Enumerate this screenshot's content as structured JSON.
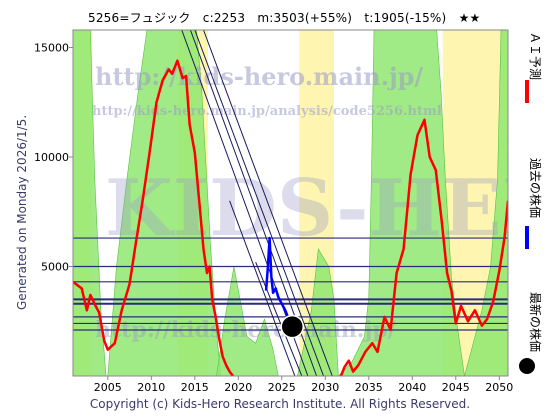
{
  "header": {
    "title": "5256=フュジック　c:2253　m:3503(+55%)　t:1905(-15%)　★★"
  },
  "side_note": "Generated on Monday 2026/1/5.",
  "footer": "Copyright (c) Kids-Hero Research Institute. All Rights Reserved.",
  "watermark": {
    "line1": "http://kids-hero.main.jp/",
    "line2": "http://kids-hero.main.jp/analysis/code5256.html",
    "big": "KIDS-HERO",
    "line3": "http://kids-hero.main.jp/"
  },
  "legend": {
    "ai": "ＡＩ予測",
    "past": "過去の株価",
    "latest": "最新の株価"
  },
  "colors": {
    "ai": "#ff0000",
    "past": "#0000ff",
    "latest": "#000000",
    "green_zone": "#8fe870",
    "yellow_zone": "#fdf5b0",
    "hline": "#2b2b7a",
    "trend": "#1a1a5a"
  },
  "chart_data": {
    "type": "line",
    "x_ticks": [
      2005,
      2010,
      2015,
      2020,
      2025,
      2030,
      2035,
      2040,
      2045,
      2050
    ],
    "y_ticks": [
      5000,
      10000,
      15000
    ],
    "xlim": [
      2001,
      2051
    ],
    "ylim": [
      0,
      15800
    ],
    "current_price": {
      "x": 2026.2,
      "y": 2253
    },
    "horizontal_levels": [
      6300,
      5000,
      4300,
      3500,
      3300,
      2700,
      2400,
      2100
    ],
    "series": [
      {
        "role": "ai",
        "x": [
          2001,
          2002,
          2002.6,
          2003,
          2003.6,
          2004,
          2004.6,
          2005,
          2005.8,
          2006.6,
          2007.5,
          2008.2,
          2009,
          2009.8,
          2010.6,
          2011.3,
          2012,
          2012.4,
          2013,
          2013.6,
          2014,
          2014.4,
          2015,
          2015.6,
          2016,
          2016.4,
          2016.7,
          2017,
          2017.4,
          2017.8,
          2018.2,
          2018.6,
          2019,
          2019.4
        ],
        "y": [
          4300,
          4000,
          3000,
          3700,
          3200,
          2900,
          1600,
          1200,
          1500,
          3000,
          4200,
          6000,
          8000,
          10200,
          12500,
          13500,
          14000,
          13800,
          14400,
          13600,
          13700,
          11500,
          10200,
          7600,
          5800,
          4700,
          5000,
          3500,
          2700,
          1700,
          900,
          500,
          200,
          0
        ]
      },
      {
        "role": "ai",
        "x": [
          2031.8,
          2032.2,
          2032.7,
          2033.2,
          2033.8,
          2034.6,
          2035.4,
          2036,
          2036.8,
          2037.5,
          2038.2,
          2039,
          2039.8,
          2040.6,
          2041.4,
          2042,
          2042.7,
          2043.4,
          2044,
          2044.5,
          2045,
          2045.6,
          2046.4,
          2047.2,
          2048,
          2048.6,
          2049.3,
          2050,
          2050.6,
          2051
        ],
        "y": [
          0,
          400,
          700,
          200,
          500,
          1100,
          1500,
          1100,
          2700,
          2100,
          4700,
          5800,
          9200,
          11000,
          11700,
          10000,
          9400,
          7000,
          4700,
          3900,
          2400,
          3200,
          2500,
          3000,
          2300,
          2600,
          3400,
          4800,
          6300,
          8000
        ]
      },
      {
        "role": "past",
        "x": [
          2023.2,
          2023.4,
          2023.6,
          2023.8,
          2024,
          2024.3,
          2024.6,
          2025,
          2025.4,
          2025.8,
          2026.2
        ],
        "y": [
          3900,
          5000,
          6300,
          4500,
          3800,
          4000,
          3600,
          3300,
          3000,
          2600,
          2253
        ]
      }
    ]
  }
}
